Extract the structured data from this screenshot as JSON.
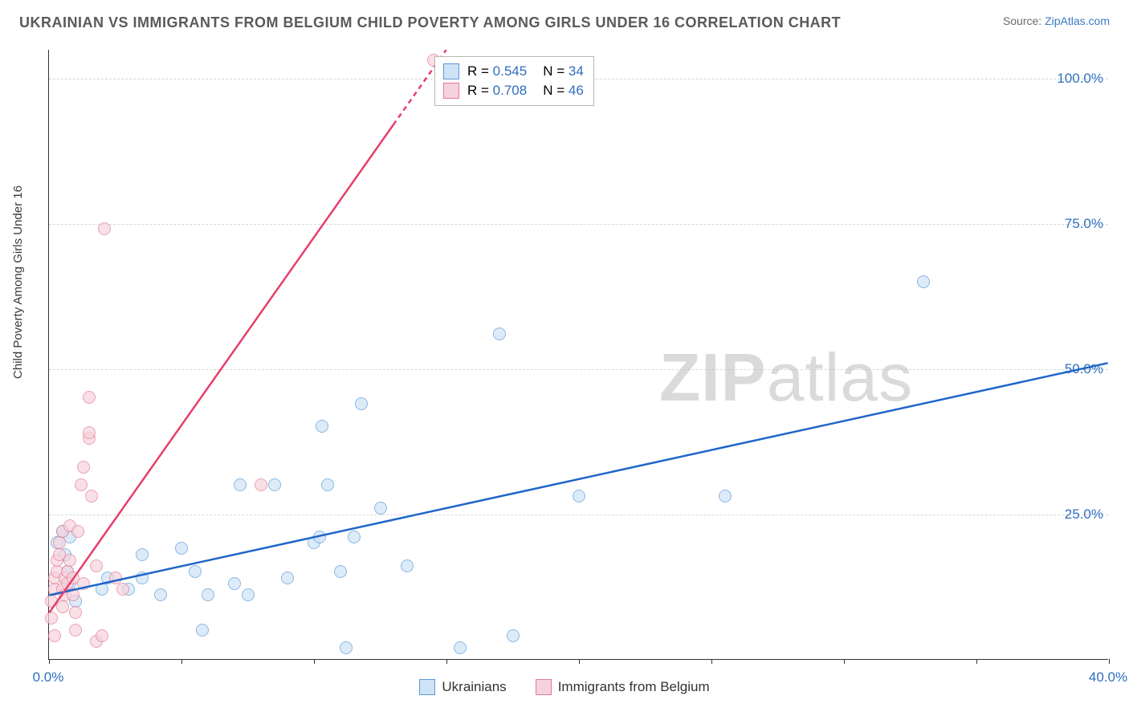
{
  "title": "UKRAINIAN VS IMMIGRANTS FROM BELGIUM CHILD POVERTY AMONG GIRLS UNDER 16 CORRELATION CHART",
  "source_prefix": "Source: ",
  "source_link": "ZipAtlas.com",
  "ylabel": "Child Poverty Among Girls Under 16",
  "watermark_bold": "ZIP",
  "watermark_light": "atlas",
  "chart": {
    "type": "scatter",
    "background_color": "#ffffff",
    "x_domain": [
      0,
      40
    ],
    "y_domain": [
      0,
      105
    ],
    "x_ticks": [
      0,
      5,
      10,
      15,
      20,
      25,
      30,
      35,
      40
    ],
    "x_tick_labels_shown": {
      "0": "0.0%",
      "40": "40.0%"
    },
    "y_gridlines": [
      25,
      50,
      75,
      100
    ],
    "y_tick_labels": {
      "25": "25.0%",
      "50": "50.0%",
      "75": "75.0%",
      "100": "100.0%"
    },
    "grid_color": "#d8d8d8",
    "axis_color": "#333333",
    "tick_label_color": "#2f6fbf",
    "tick_fontsize": 17,
    "label_fontsize": 15,
    "marker_radius": 8,
    "marker_stroke_width": 1.5,
    "trend_line_width": 2.5,
    "series": [
      {
        "name": "Ukrainians",
        "fill": "#cfe3f7",
        "stroke": "#5a99d6",
        "fill_opacity": 0.7,
        "trend_color": "#1f66c9",
        "trend": {
          "x1": 0,
          "y1": 11,
          "x2": 40,
          "y2": 51
        },
        "R": "0.545",
        "N": "34",
        "points": [
          [
            0.3,
            20
          ],
          [
            0.5,
            22
          ],
          [
            0.6,
            18
          ],
          [
            0.7,
            15
          ],
          [
            0.8,
            21
          ],
          [
            0.8,
            13
          ],
          [
            1.0,
            10
          ],
          [
            2.0,
            12
          ],
          [
            2.2,
            14
          ],
          [
            3.0,
            12
          ],
          [
            3.5,
            14
          ],
          [
            3.5,
            18
          ],
          [
            4.2,
            11
          ],
          [
            5.0,
            19
          ],
          [
            5.5,
            15
          ],
          [
            5.8,
            5
          ],
          [
            6.0,
            11
          ],
          [
            7.0,
            13
          ],
          [
            7.2,
            30
          ],
          [
            7.5,
            11
          ],
          [
            8.5,
            30
          ],
          [
            9.0,
            14
          ],
          [
            10.0,
            20
          ],
          [
            10.2,
            21
          ],
          [
            10.3,
            40
          ],
          [
            10.5,
            30
          ],
          [
            11.0,
            15
          ],
          [
            11.2,
            2
          ],
          [
            11.5,
            21
          ],
          [
            11.8,
            44
          ],
          [
            12.5,
            26
          ],
          [
            13.5,
            16
          ],
          [
            15.5,
            2
          ],
          [
            17.5,
            4
          ],
          [
            17.0,
            56
          ],
          [
            20.0,
            28
          ],
          [
            25.5,
            28
          ],
          [
            33.0,
            65
          ]
        ]
      },
      {
        "name": "Immigrants from Belgium",
        "fill": "#f6d3dc",
        "stroke": "#e27a9a",
        "fill_opacity": 0.7,
        "trend_color": "#e83e6b",
        "trend_dashed_after_x": 13,
        "trend": {
          "x1": 0,
          "y1": 8,
          "x2": 15,
          "y2": 105
        },
        "R": "0.708",
        "N": "46",
        "points": [
          [
            0.1,
            7
          ],
          [
            0.1,
            10
          ],
          [
            0.2,
            12
          ],
          [
            0.2,
            14
          ],
          [
            0.2,
            4
          ],
          [
            0.3,
            15
          ],
          [
            0.3,
            17
          ],
          [
            0.4,
            18
          ],
          [
            0.4,
            20
          ],
          [
            0.5,
            12
          ],
          [
            0.5,
            22
          ],
          [
            0.5,
            9
          ],
          [
            0.6,
            11
          ],
          [
            0.6,
            14
          ],
          [
            0.7,
            15
          ],
          [
            0.7,
            13
          ],
          [
            0.8,
            23
          ],
          [
            0.8,
            17
          ],
          [
            0.9,
            14
          ],
          [
            0.9,
            11
          ],
          [
            1.0,
            5
          ],
          [
            1.0,
            8
          ],
          [
            1.1,
            22
          ],
          [
            1.2,
            30
          ],
          [
            1.3,
            33
          ],
          [
            1.3,
            13
          ],
          [
            1.5,
            38
          ],
          [
            1.5,
            39
          ],
          [
            1.5,
            45
          ],
          [
            1.6,
            28
          ],
          [
            1.8,
            16
          ],
          [
            1.8,
            3
          ],
          [
            2.0,
            4
          ],
          [
            2.1,
            74
          ],
          [
            2.5,
            14
          ],
          [
            2.8,
            12
          ],
          [
            8.0,
            30
          ],
          [
            14.5,
            103
          ]
        ]
      }
    ]
  },
  "legend_stats_labels": {
    "R": "R =",
    "N": "N ="
  },
  "legend_bottom": [
    {
      "swatch_fill": "#cfe3f7",
      "swatch_stroke": "#5a99d6",
      "label": "Ukrainians"
    },
    {
      "swatch_fill": "#f6d3dc",
      "swatch_stroke": "#e27a9a",
      "label": "Immigrants from Belgium"
    }
  ]
}
